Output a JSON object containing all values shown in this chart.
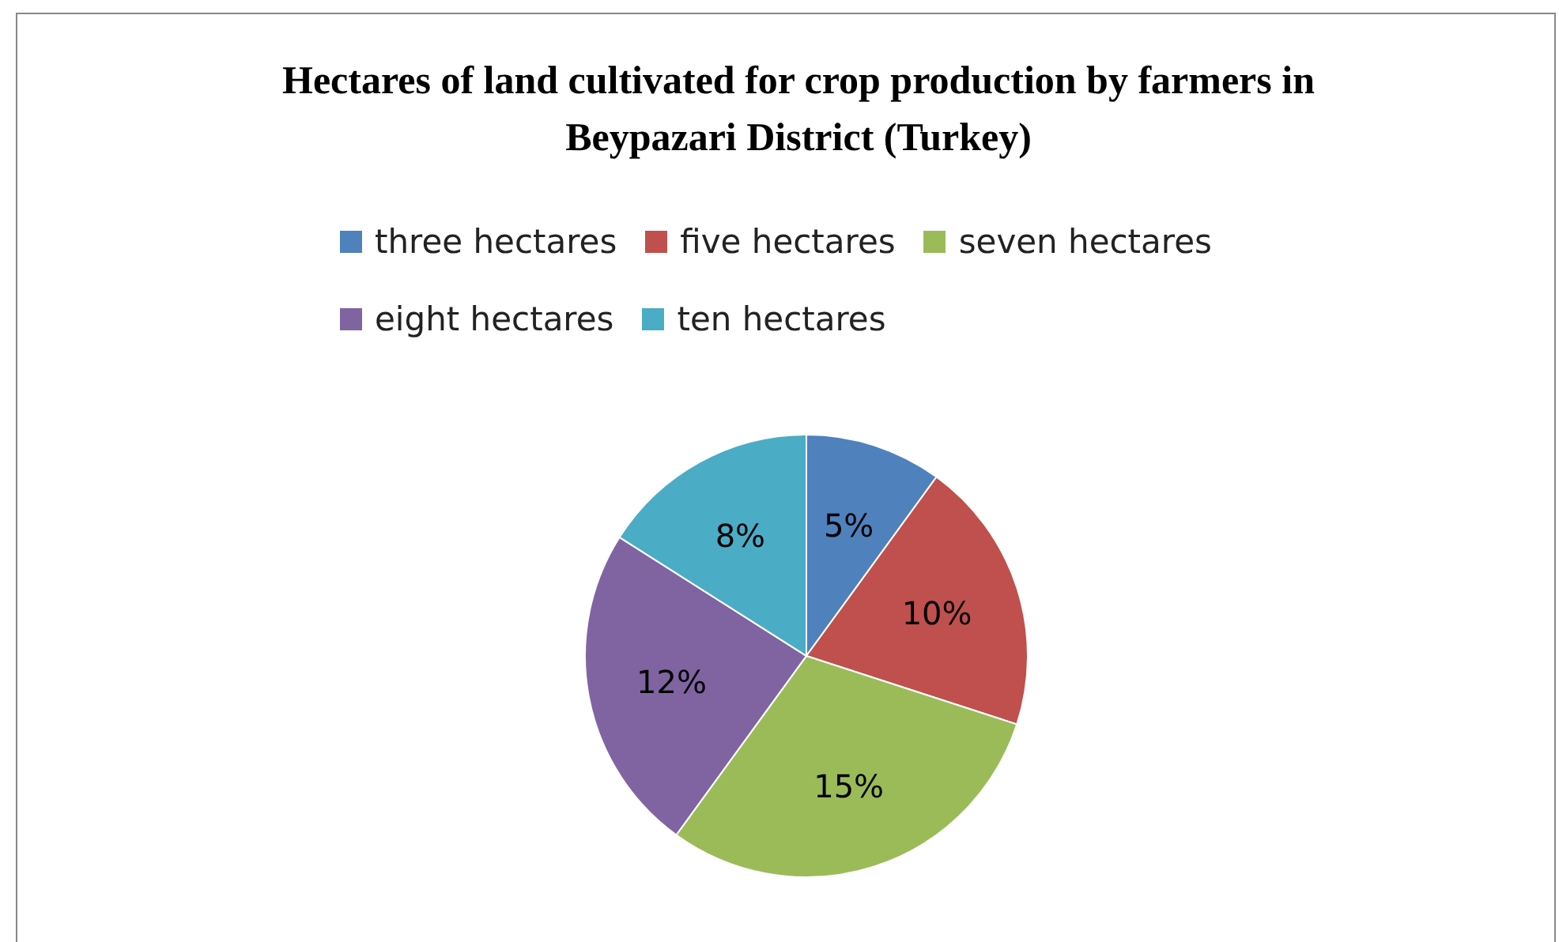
{
  "chart_data": {
    "type": "pie",
    "title": "Hectares of land cultivated for crop production by farmers in Beypazari District (Turkey)",
    "categories": [
      "three hectares",
      "five hectares",
      "seven hectares",
      "eight hectares",
      "ten hectares"
    ],
    "values": [
      5,
      10,
      15,
      12,
      8
    ],
    "colors": [
      "#4f81bd",
      "#c0504d",
      "#9bbb59",
      "#8064a2",
      "#4bacc6"
    ],
    "value_labels": [
      "5%",
      "10%",
      "15%",
      "12%",
      "8%"
    ],
    "legend": "top"
  }
}
